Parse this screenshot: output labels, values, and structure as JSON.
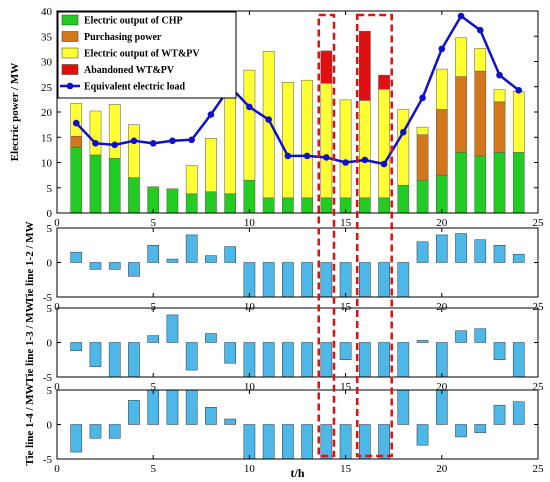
{
  "chart_data": [
    {
      "type": "bar",
      "panel": "electric",
      "stacked": true,
      "ylabel": "Electric power / MW",
      "xlabel": "",
      "xlim": [
        0,
        25
      ],
      "ylim": [
        0,
        40
      ],
      "xticks": [
        "0",
        "5",
        "10",
        "15",
        "20",
        "25"
      ],
      "yticks": [
        "0",
        "5",
        "10",
        "15",
        "20",
        "25",
        "30",
        "35",
        "40"
      ],
      "legend_position": "top-left",
      "x": [
        1,
        2,
        3,
        4,
        5,
        6,
        7,
        8,
        9,
        10,
        11,
        12,
        13,
        14,
        15,
        16,
        17,
        18,
        19,
        20,
        21,
        22,
        23,
        24
      ],
      "series": [
        {
          "name": "Electric output of CHP",
          "color": "#22cc22",
          "values": [
            13,
            11.5,
            10.8,
            7,
            5.2,
            4.8,
            3.8,
            4.2,
            3.8,
            6.5,
            3,
            3,
            3,
            3,
            3,
            3,
            3,
            5.5,
            6.5,
            7.5,
            12,
            11.3,
            12,
            12
          ]
        },
        {
          "name": "Purchasing power",
          "color": "#d4771a",
          "values": [
            2.2,
            0,
            0,
            0,
            0,
            0,
            0,
            0,
            0,
            0,
            0,
            0,
            0,
            0,
            0,
            0,
            0,
            0,
            9,
            13,
            15,
            16.8,
            10,
            0
          ]
        },
        {
          "name": "Electric output of WT&PV",
          "color": "#ffff33",
          "values": [
            6.5,
            8.7,
            10.7,
            10.5,
            0,
            0,
            5.6,
            10.6,
            20,
            21.8,
            29,
            22.9,
            23.3,
            22.7,
            19.4,
            19.3,
            21.5,
            15,
            1.5,
            8,
            7.7,
            4.5,
            2.4,
            12.1
          ]
        },
        {
          "name": "Abandoned WT&PV",
          "color": "#e01010",
          "values": [
            0,
            0,
            0,
            0,
            0,
            0,
            0,
            0,
            0,
            0,
            0,
            0,
            0,
            6.4,
            0,
            13.7,
            2.8,
            0,
            0,
            0,
            0,
            0,
            0,
            0
          ]
        }
      ],
      "line": {
        "name": "Equivalent electric load",
        "color": "#1010cc",
        "values": [
          17.8,
          13.8,
          13.5,
          14.3,
          13.8,
          14.3,
          14.5,
          19.5,
          25,
          21,
          18.5,
          11.3,
          11.3,
          11,
          10,
          10.5,
          9.7,
          16,
          22.8,
          32.5,
          39,
          36.2,
          27.3,
          24.3
        ]
      }
    },
    {
      "type": "bar",
      "panel": "tie12",
      "ylabel": "Tie line 1-2 / MW",
      "xlim": [
        0,
        25
      ],
      "ylim": [
        -5,
        5
      ],
      "xticks": [
        "0",
        "5",
        "10",
        "15",
        "20",
        "25"
      ],
      "yticks": [
        "-5",
        "0",
        "5"
      ],
      "color": "#4db8e8",
      "x": [
        1,
        2,
        3,
        4,
        5,
        6,
        7,
        8,
        9,
        10,
        11,
        12,
        13,
        14,
        15,
        16,
        17,
        18,
        19,
        20,
        21,
        22,
        23,
        24
      ],
      "values": [
        1.5,
        -1,
        -1,
        -2,
        2.5,
        0.5,
        4,
        1,
        2.3,
        -5,
        -5,
        -5,
        -5,
        -5,
        -5,
        -5,
        -5,
        -5,
        3,
        4,
        4.2,
        3.3,
        2.5,
        1.2
      ]
    },
    {
      "type": "bar",
      "panel": "tie13",
      "ylabel": "Tie line 1-3 / MW",
      "xlim": [
        0,
        25
      ],
      "ylim": [
        -5,
        5
      ],
      "xticks": [
        "0",
        "5",
        "10",
        "15",
        "20",
        "25"
      ],
      "yticks": [
        "-5",
        "0",
        "5"
      ],
      "color": "#4db8e8",
      "x": [
        1,
        2,
        3,
        4,
        5,
        6,
        7,
        8,
        9,
        10,
        11,
        12,
        13,
        14,
        15,
        16,
        17,
        18,
        19,
        20,
        21,
        22,
        23,
        24
      ],
      "values": [
        -1.2,
        -3.5,
        -5,
        -5,
        1,
        4,
        -4,
        1.3,
        -3,
        -5,
        -5,
        -5,
        -5,
        -5,
        -2.5,
        -5,
        -5,
        -5,
        0.3,
        -5,
        1.7,
        2,
        -2.5,
        -5
      ]
    },
    {
      "type": "bar",
      "panel": "tie14",
      "ylabel": "Tie line 1-4 / MW",
      "xlabel": "t/h",
      "xlim": [
        0,
        25
      ],
      "ylim": [
        -5,
        5
      ],
      "xticks": [
        "0",
        "5",
        "10",
        "15",
        "20",
        "25"
      ],
      "yticks": [
        "-5",
        "0",
        "5"
      ],
      "color": "#4db8e8",
      "x": [
        1,
        2,
        3,
        4,
        5,
        6,
        7,
        8,
        9,
        10,
        11,
        12,
        13,
        14,
        15,
        16,
        17,
        18,
        19,
        20,
        21,
        22,
        23,
        24
      ],
      "values": [
        -4,
        -2,
        -2,
        3.5,
        5,
        5,
        5,
        2.5,
        0.8,
        -5,
        -5,
        -5,
        -5,
        -5,
        -5,
        -5,
        -5,
        5,
        -3,
        5,
        -1.8,
        -1.2,
        2.8,
        3.3
      ]
    }
  ],
  "highlight_boxes": {
    "color": "#dd1111",
    "x_ranges": [
      [
        13.5,
        14.5
      ],
      [
        15.5,
        17.5
      ]
    ]
  }
}
